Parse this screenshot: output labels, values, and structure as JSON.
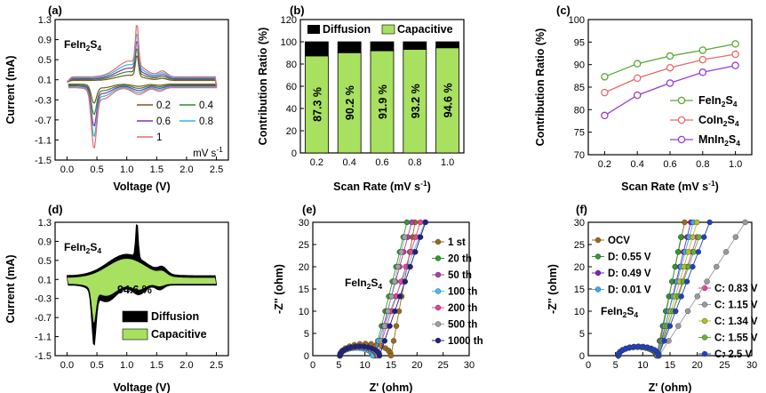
{
  "chart_data": [
    {
      "panel": "(a)",
      "type": "line",
      "xlabel": "Voltage (V)",
      "ylabel": "Current (mA)",
      "material": "FeIn2S4",
      "xlim": [
        -0.2,
        2.7
      ],
      "ylim": [
        -1.5,
        1.3
      ],
      "xticks": [
        0.0,
        0.5,
        1.0,
        1.5,
        2.0,
        2.5
      ],
      "yticks": [
        -1.5,
        -1.1,
        -0.7,
        -0.3,
        0.1,
        0.5,
        0.9,
        1.3
      ],
      "legend_unit": "mV s-1",
      "series": [
        {
          "name": "0.2",
          "color": "#7a5a1a",
          "peak_ox": 0.62,
          "peak_red": -0.4,
          "env": 0.3
        },
        {
          "name": "0.4",
          "color": "#2f8a2f",
          "peak_ox": 0.73,
          "peak_red": -0.62,
          "env": 0.45
        },
        {
          "name": "0.6",
          "color": "#8a2fb0",
          "peak_ox": 0.85,
          "peak_red": -0.85,
          "env": 0.6
        },
        {
          "name": "0.8",
          "color": "#28b8e0",
          "peak_ox": 0.97,
          "peak_red": -1.05,
          "env": 0.75
        },
        {
          "name": "1",
          "color": "#e86a6a",
          "peak_ox": 1.13,
          "peak_red": -1.28,
          "env": 0.9
        }
      ]
    },
    {
      "panel": "(b)",
      "type": "bar",
      "xlabel": "Scan Rate (mV s-1)",
      "ylabel": "Contribution Ratio (%)",
      "ylim": [
        0,
        120
      ],
      "yticks": [
        0,
        20,
        40,
        60,
        80,
        100,
        120
      ],
      "categories": [
        "0.2",
        "0.4",
        "0.6",
        "0.8",
        "1.0"
      ],
      "series": [
        {
          "name": "Capacitive",
          "color": "#a8e060",
          "values": [
            87.3,
            90.2,
            91.9,
            93.2,
            94.6
          ]
        },
        {
          "name": "Diffusion",
          "color": "#000000",
          "values": [
            12.7,
            9.8,
            8.1,
            6.8,
            5.4
          ]
        }
      ],
      "data_labels": [
        "87.3 %",
        "90.2 %",
        "91.9 %",
        "93.2 %",
        "94.6 %"
      ]
    },
    {
      "panel": "(c)",
      "type": "line",
      "xlabel": "Scan Rate (mV s-1)",
      "ylabel": "Contribution Ratio (%)",
      "xlim": [
        0.1,
        1.1
      ],
      "ylim": [
        70,
        100
      ],
      "xticks": [
        0.2,
        0.4,
        0.6,
        0.8,
        1.0
      ],
      "yticks": [
        70,
        75,
        80,
        85,
        90,
        95,
        100
      ],
      "x": [
        0.2,
        0.4,
        0.6,
        0.8,
        1.0
      ],
      "series": [
        {
          "name": "FeIn2S4",
          "color": "#5aa832",
          "values": [
            87.3,
            90.2,
            91.9,
            93.2,
            94.6
          ]
        },
        {
          "name": "CoIn2S4",
          "color": "#e86a6a",
          "values": [
            83.8,
            87.0,
            89.3,
            91.1,
            92.3
          ]
        },
        {
          "name": "MnIn2S4",
          "color": "#9a3ed0",
          "values": [
            78.7,
            83.2,
            85.9,
            88.3,
            89.8
          ]
        }
      ]
    },
    {
      "panel": "(d)",
      "type": "area",
      "xlabel": "Voltage (V)",
      "ylabel": "Current (mA)",
      "material": "FeIn2S4",
      "xlim": [
        -0.2,
        2.7
      ],
      "ylim": [
        -1.5,
        1.3
      ],
      "xticks": [
        0.0,
        0.5,
        1.0,
        1.5,
        2.0,
        2.5
      ],
      "yticks": [
        -1.5,
        -1.1,
        -0.7,
        -0.3,
        0.1,
        0.5,
        0.9,
        1.3
      ],
      "annotation": "94.6 %",
      "series": [
        {
          "name": "Diffusion",
          "color": "#000000"
        },
        {
          "name": "Capacitive",
          "color": "#a8e060"
        }
      ]
    },
    {
      "panel": "(e)",
      "type": "scatter",
      "xlabel": "Z' (ohm)",
      "ylabel": "-Z'' (ohm)",
      "material": "FeIn2S4",
      "xlim": [
        0,
        30
      ],
      "ylim": [
        0,
        30
      ],
      "xticks": [
        0,
        5,
        10,
        15,
        20,
        25,
        30
      ],
      "yticks": [
        0,
        5,
        10,
        15,
        20,
        25,
        30
      ],
      "series": [
        {
          "name": "1 st",
          "color": "#9a6a1a",
          "x0": 5.2,
          "x1": 15.0,
          "slope": 6.5
        },
        {
          "name": "20 th",
          "color": "#2f9a2f",
          "x0": 5.2,
          "x1": 11.8,
          "slope": 4.8
        },
        {
          "name": "50 th",
          "color": "#b03ab0",
          "x0": 5.2,
          "x1": 12.0,
          "slope": 4.3
        },
        {
          "name": "100 th",
          "color": "#40c0e8",
          "x0": 5.2,
          "x1": 11.5,
          "slope": 3.0
        },
        {
          "name": "200 th",
          "color": "#e8409a",
          "x0": 5.2,
          "x1": 12.3,
          "slope": 3.6
        },
        {
          "name": "500 th",
          "color": "#a0a0a0",
          "x0": 5.2,
          "x1": 12.5,
          "slope": 5.2
        },
        {
          "name": "1000 th",
          "color": "#202080",
          "x0": 5.2,
          "x1": 12.8,
          "slope": 3.4
        }
      ]
    },
    {
      "panel": "(f)",
      "type": "scatter",
      "xlabel": "Z' (ohm)",
      "ylabel": "-Z'' (ohm)",
      "material": "FeIn2S4",
      "xlim": [
        0,
        30
      ],
      "ylim": [
        0,
        30
      ],
      "xticks": [
        0,
        5,
        10,
        15,
        20,
        25,
        30
      ],
      "yticks": [
        0,
        5,
        10,
        15,
        20,
        25,
        30
      ],
      "series": [
        {
          "name": "OCV",
          "color": "#9a6a1a",
          "x0": 5.5,
          "x1": 12.5,
          "slope": 5.8
        },
        {
          "name": "D: 0.55 V",
          "color": "#2f9a2f",
          "x0": 5.5,
          "x1": 12.7,
          "slope": 6.2
        },
        {
          "name": "D: 0.49 V",
          "color": "#7a20c0",
          "x0": 5.5,
          "x1": 12.8,
          "slope": 5.0
        },
        {
          "name": "D: 0.01 V",
          "color": "#40a8e8",
          "x0": 5.5,
          "x1": 12.6,
          "slope": 4.5
        },
        {
          "name": "C: 0.83 V",
          "color": "#e840a0",
          "x0": 5.5,
          "x1": 12.9,
          "slope": 3.8
        },
        {
          "name": "C: 1.15 V",
          "color": "#9a9a9a",
          "x0": 5.5,
          "x1": 13.0,
          "slope": 1.9
        },
        {
          "name": "C: 1.34 V",
          "color": "#b0c020",
          "x0": 5.5,
          "x1": 12.8,
          "slope": 4.2
        },
        {
          "name": "C: 1.55 V",
          "color": "#60b830",
          "x0": 5.5,
          "x1": 12.7,
          "slope": 3.5
        },
        {
          "name": "C: 2.5 V",
          "color": "#2040c0",
          "x0": 5.5,
          "x1": 12.9,
          "slope": 3.2
        }
      ]
    }
  ]
}
